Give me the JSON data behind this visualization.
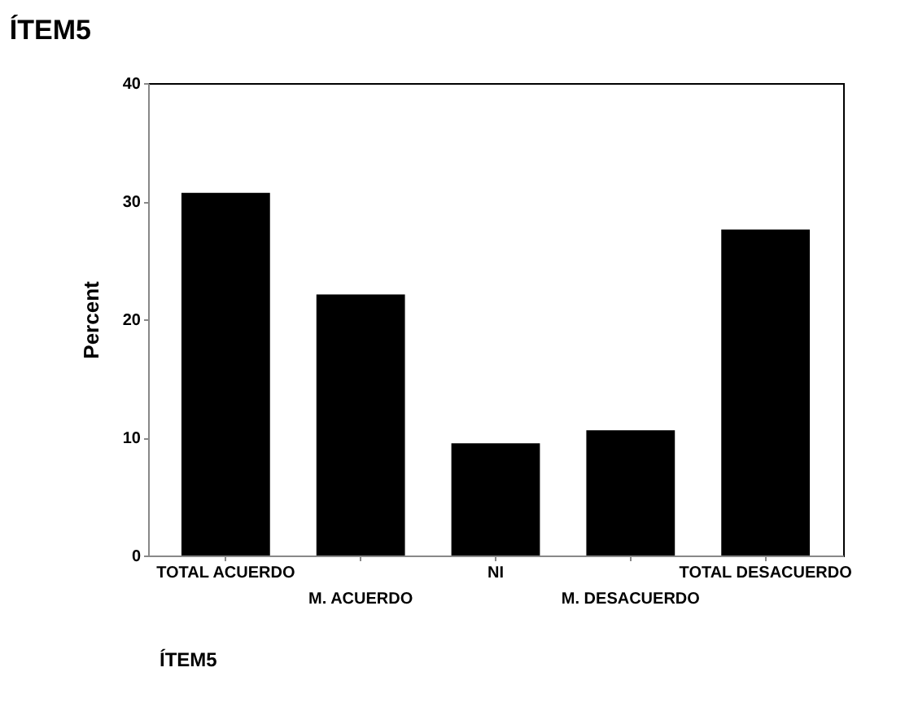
{
  "chart_data": {
    "type": "bar",
    "title": "ÍTEM5",
    "categories": [
      "TOTAL ACUERDO",
      "M. ACUERDO",
      "NI",
      "M. DESACUERDO",
      "TOTAL DESACUERDO"
    ],
    "values": [
      30.7,
      22.1,
      9.5,
      10.6,
      27.6
    ],
    "color": "#000000",
    "ylabel": "Percent",
    "ylim": [
      0,
      40
    ],
    "yticks": [
      0,
      10,
      20,
      30,
      40
    ],
    "grid": false,
    "annotations": [
      "ÍTEM5"
    ]
  }
}
